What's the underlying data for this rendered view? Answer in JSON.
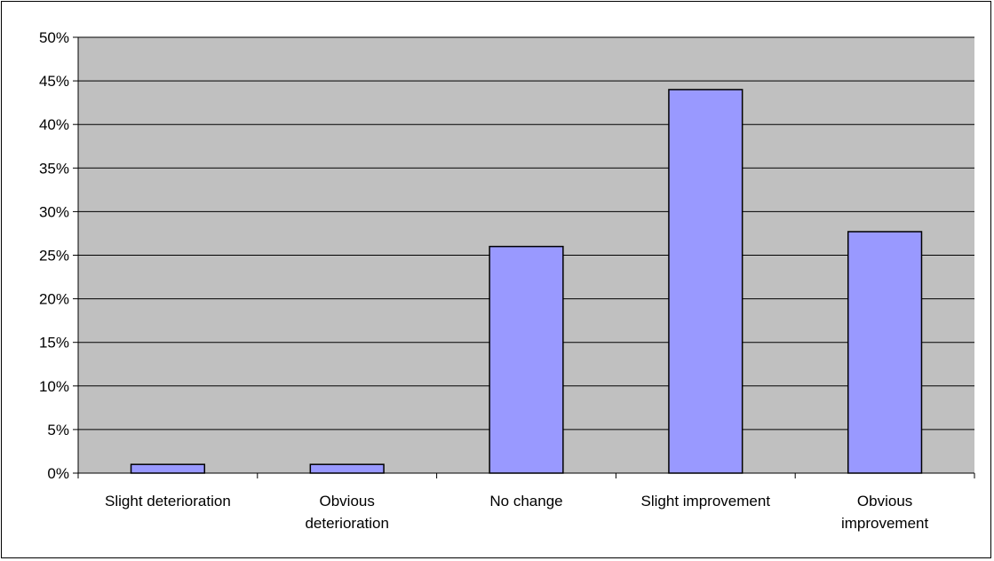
{
  "chart_data": {
    "type": "bar",
    "title": "",
    "xlabel": "",
    "ylabel": "",
    "categories": [
      [
        "Slight  deterioration"
      ],
      [
        "Obvious",
        "deterioration"
      ],
      [
        "No change"
      ],
      [
        "Slight improvement"
      ],
      [
        "Obvious",
        "improvement"
      ]
    ],
    "values": [
      1,
      1,
      26,
      44,
      27.7
    ],
    "ylim": [
      0,
      50
    ],
    "yticks": [
      0,
      5,
      10,
      15,
      20,
      25,
      30,
      35,
      40,
      45,
      50
    ],
    "ytick_labels": [
      "0%",
      "5%",
      "10%",
      "15%",
      "20%",
      "25%",
      "30%",
      "35%",
      "40%",
      "45%",
      "50%"
    ],
    "value_format": "percent",
    "grid": true,
    "legend": "none",
    "colors": {
      "bar_fill": "#9999ff",
      "bar_stroke": "#000000",
      "plot_background": "#c0c0c0",
      "gridline": "#000000",
      "page_background": "#ffffff"
    }
  }
}
